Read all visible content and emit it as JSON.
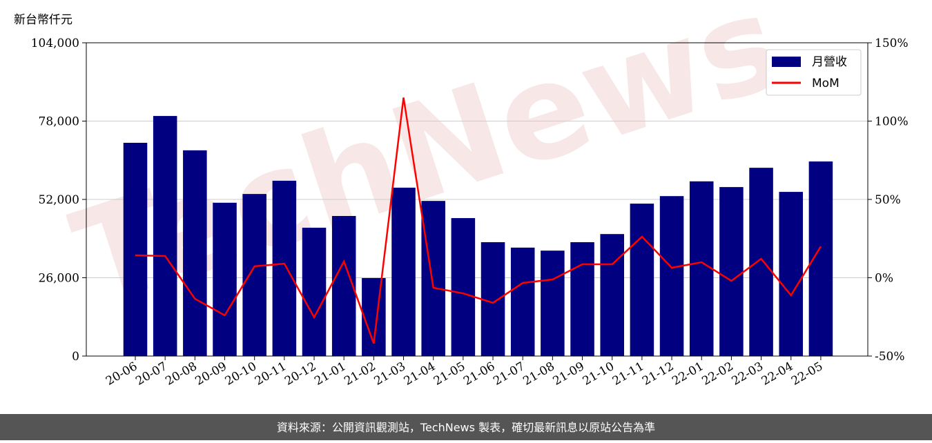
{
  "chart_data": {
    "type": "bar",
    "y_label": "新台幣仟元",
    "watermark": "TechNews",
    "footer": "資料來源：公開資訊觀測站，TechNews 製表，確切最新訊息以原站公告為準",
    "categories": [
      "20-06",
      "20-07",
      "20-08",
      "20-09",
      "20-10",
      "20-11",
      "20-12",
      "21-01",
      "21-02",
      "21-03",
      "21-04",
      "21-05",
      "21-06",
      "21-07",
      "21-08",
      "21-09",
      "21-10",
      "21-11",
      "21-12",
      "22-01",
      "22-02",
      "22-03",
      "22-04",
      "22-05"
    ],
    "series": [
      {
        "name": "月營收",
        "type": "bar",
        "color": "#000080",
        "values": [
          70800,
          79700,
          68300,
          50900,
          53800,
          58200,
          42600,
          46500,
          25900,
          55900,
          51500,
          45800,
          37800,
          36000,
          35000,
          37800,
          40500,
          50600,
          53100,
          58000,
          56100,
          62500,
          54500,
          64600
        ]
      },
      {
        "name": "MoM",
        "type": "line",
        "color": "#ff0000",
        "axis": "y2",
        "values": [
          14.3,
          13.9,
          -13.4,
          -24,
          7.3,
          9.0,
          -25.3,
          10.4,
          -42,
          115,
          -6.4,
          -10,
          -16,
          -3.3,
          -1.1,
          8.6,
          8.6,
          26.2,
          6.4,
          9.9,
          -2,
          12.1,
          -11.2,
          20
        ]
      }
    ],
    "ylim": [
      0,
      104000
    ],
    "yticks": [
      0,
      {
        "value": 26000,
        "label": "26,000"
      },
      {
        "value": 52000,
        "label": "52,000"
      },
      {
        "value": 78000,
        "label": "78,000"
      },
      {
        "value": 104000,
        "label": "104,000"
      }
    ],
    "y2lim": [
      -50,
      150
    ],
    "y2ticks": [
      {
        "value": -50,
        "label": "-50%"
      },
      {
        "value": 0,
        "label": "0%"
      },
      {
        "value": 50,
        "label": "50%"
      },
      {
        "value": 100,
        "label": "100%"
      },
      {
        "value": 150,
        "label": "150%"
      }
    ],
    "grid": true,
    "legend": "upper right"
  }
}
